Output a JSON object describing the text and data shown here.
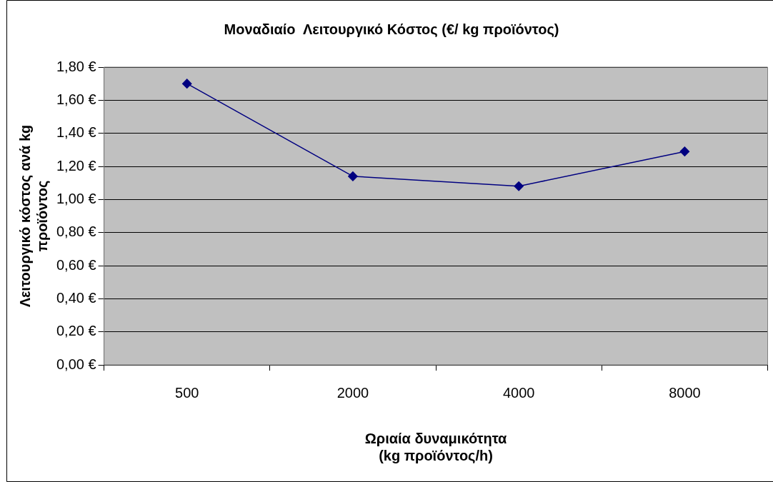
{
  "chart_data": {
    "type": "line",
    "title": "Μοναδιαίο  Λειτουργικό Κόστος (€/ kg προϊόντος)",
    "xlabel": "Ωριαία δυναμικότητα\n(kg προϊόντος/h)",
    "ylabel": "Λειτουργικό κόστος ανά kg\nπροϊόντος",
    "categories": [
      "500",
      "2000",
      "4000",
      "8000"
    ],
    "series": [
      {
        "color": "#000080",
        "values": [
          1.7,
          1.14,
          1.08,
          1.29
        ]
      }
    ],
    "ylim": [
      0,
      1.8
    ],
    "yticks": [
      {
        "value": 0,
        "label": "0,00 €"
      },
      {
        "value": 0.2,
        "label": "0,20 €"
      },
      {
        "value": 0.4,
        "label": "0,40 €"
      },
      {
        "value": 0.6,
        "label": "0,60 €"
      },
      {
        "value": 0.8,
        "label": "0,80 €"
      },
      {
        "value": 1.0,
        "label": "1,00 €"
      },
      {
        "value": 1.2,
        "label": "1,20 €"
      },
      {
        "value": 1.4,
        "label": "1,40 €"
      },
      {
        "value": 1.6,
        "label": "1,60 €"
      },
      {
        "value": 1.8,
        "label": "1,80 €"
      }
    ],
    "grid": "y",
    "legend": false,
    "marker": "diamond",
    "line_style": "solid"
  }
}
